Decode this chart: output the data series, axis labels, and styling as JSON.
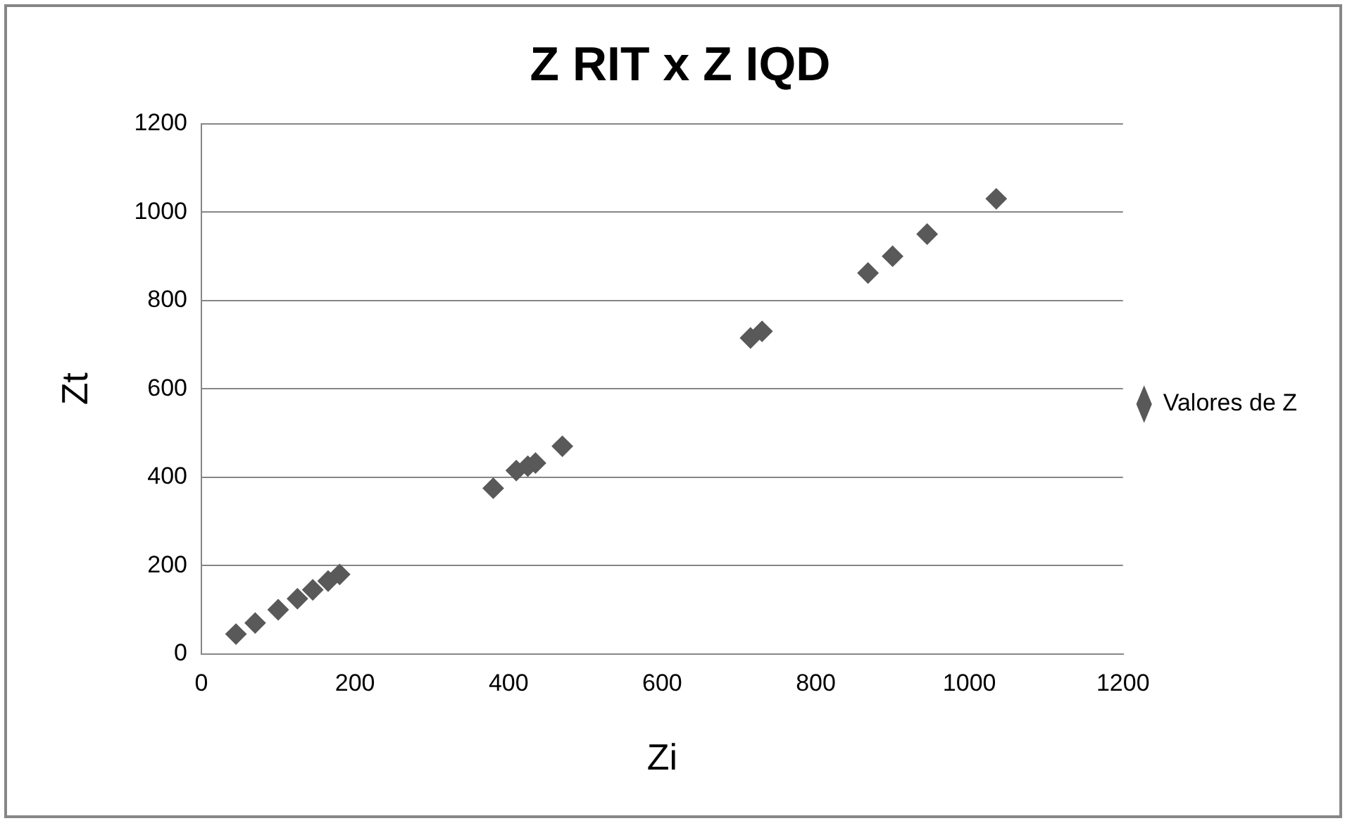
{
  "chart_data": {
    "type": "scatter",
    "title": "Z RIT x Z IQD",
    "xlabel": "Zi",
    "ylabel": "Zt",
    "series": [
      {
        "name": "Valores de Z",
        "color": "#595959",
        "x": [
          45,
          70,
          100,
          125,
          145,
          165,
          180,
          380,
          410,
          425,
          435,
          470,
          715,
          730,
          868,
          900,
          945,
          1035
        ],
        "values": [
          45,
          70,
          100,
          125,
          145,
          165,
          180,
          375,
          415,
          425,
          432,
          470,
          715,
          730,
          862,
          900,
          950,
          1030
        ]
      }
    ],
    "xlim": [
      0,
      1200
    ],
    "xticks": [
      0,
      200,
      400,
      600,
      800,
      1000,
      1200
    ],
    "ylim": [
      0,
      1200
    ],
    "yticks": [
      0,
      200,
      400,
      600,
      800,
      1000,
      1200
    ],
    "grid": "y",
    "legend": "right",
    "marker": "diamond"
  }
}
